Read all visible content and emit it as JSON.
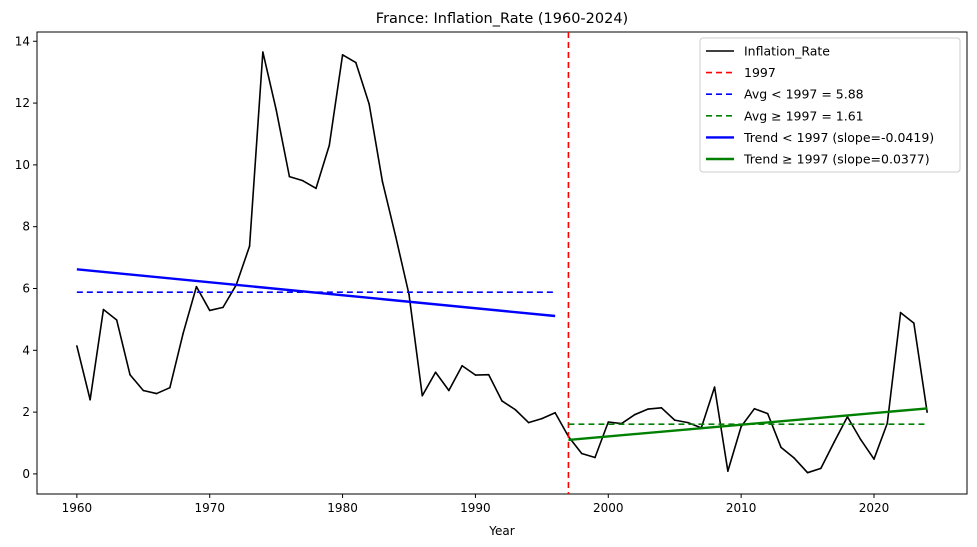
{
  "chart_data": {
    "type": "line",
    "title": "France: Inflation_Rate (1960-2024)",
    "xlabel": "Year",
    "ylabel": "",
    "xlim": [
      1957,
      2027
    ],
    "ylim": [
      -0.65,
      14.3
    ],
    "xticks": [
      1960,
      1970,
      1980,
      1990,
      2000,
      2010,
      2020
    ],
    "yticks": [
      0,
      2,
      4,
      6,
      8,
      10,
      12,
      14
    ],
    "grid": false,
    "legend_position": "top-right",
    "series": [
      {
        "name": "Inflation_Rate",
        "style": "solid",
        "color": "#000000",
        "x": [
          1960,
          1961,
          1962,
          1963,
          1964,
          1965,
          1966,
          1967,
          1968,
          1969,
          1970,
          1971,
          1972,
          1973,
          1974,
          1975,
          1976,
          1977,
          1978,
          1979,
          1980,
          1981,
          1982,
          1983,
          1984,
          1985,
          1986,
          1987,
          1988,
          1989,
          1990,
          1991,
          1992,
          1993,
          1994,
          1995,
          1996,
          1997,
          1998,
          1999,
          2000,
          2001,
          2002,
          2003,
          2004,
          2005,
          2006,
          2007,
          2008,
          2009,
          2010,
          2011,
          2012,
          2013,
          2014,
          2015,
          2016,
          2017,
          2018,
          2019,
          2020,
          2021,
          2022,
          2023,
          2024
        ],
        "values": [
          4.14,
          2.4,
          5.32,
          4.98,
          3.21,
          2.7,
          2.6,
          2.79,
          4.55,
          6.06,
          5.29,
          5.39,
          6.12,
          7.37,
          13.65,
          11.79,
          9.62,
          9.49,
          9.24,
          10.63,
          13.56,
          13.31,
          11.97,
          9.46,
          7.68,
          5.81,
          2.53,
          3.29,
          2.7,
          3.5,
          3.2,
          3.21,
          2.36,
          2.08,
          1.66,
          1.79,
          1.98,
          1.21,
          0.66,
          0.53,
          1.68,
          1.63,
          1.92,
          2.1,
          2.14,
          1.74,
          1.66,
          1.49,
          2.81,
          0.09,
          1.53,
          2.11,
          1.95,
          0.86,
          0.51,
          0.04,
          0.18,
          1.03,
          1.85,
          1.11,
          0.48,
          1.64,
          5.22,
          4.88,
          2.0
        ]
      },
      {
        "name": "1997",
        "style": "vline-dashed",
        "color": "#ff0000",
        "x_value": 1997
      },
      {
        "name": "Avg < 1997 = 5.88",
        "style": "hline-dashed",
        "color": "#0000ff",
        "x_range": [
          1960,
          1996
        ],
        "value": 5.88
      },
      {
        "name": "Avg ≥ 1997 = 1.61",
        "style": "hline-dashed",
        "color": "#008000",
        "x_range": [
          1997,
          2024
        ],
        "value": 1.61
      },
      {
        "name": "Trend < 1997 (slope=-0.0419)",
        "style": "trend",
        "color": "#0000ff",
        "x": [
          1960,
          1996
        ],
        "values": [
          6.62,
          5.11
        ]
      },
      {
        "name": "Trend ≥ 1997 (slope=0.0377)",
        "style": "trend",
        "color": "#008000",
        "x": [
          1997,
          2024
        ],
        "values": [
          1.1,
          2.12
        ]
      }
    ]
  }
}
